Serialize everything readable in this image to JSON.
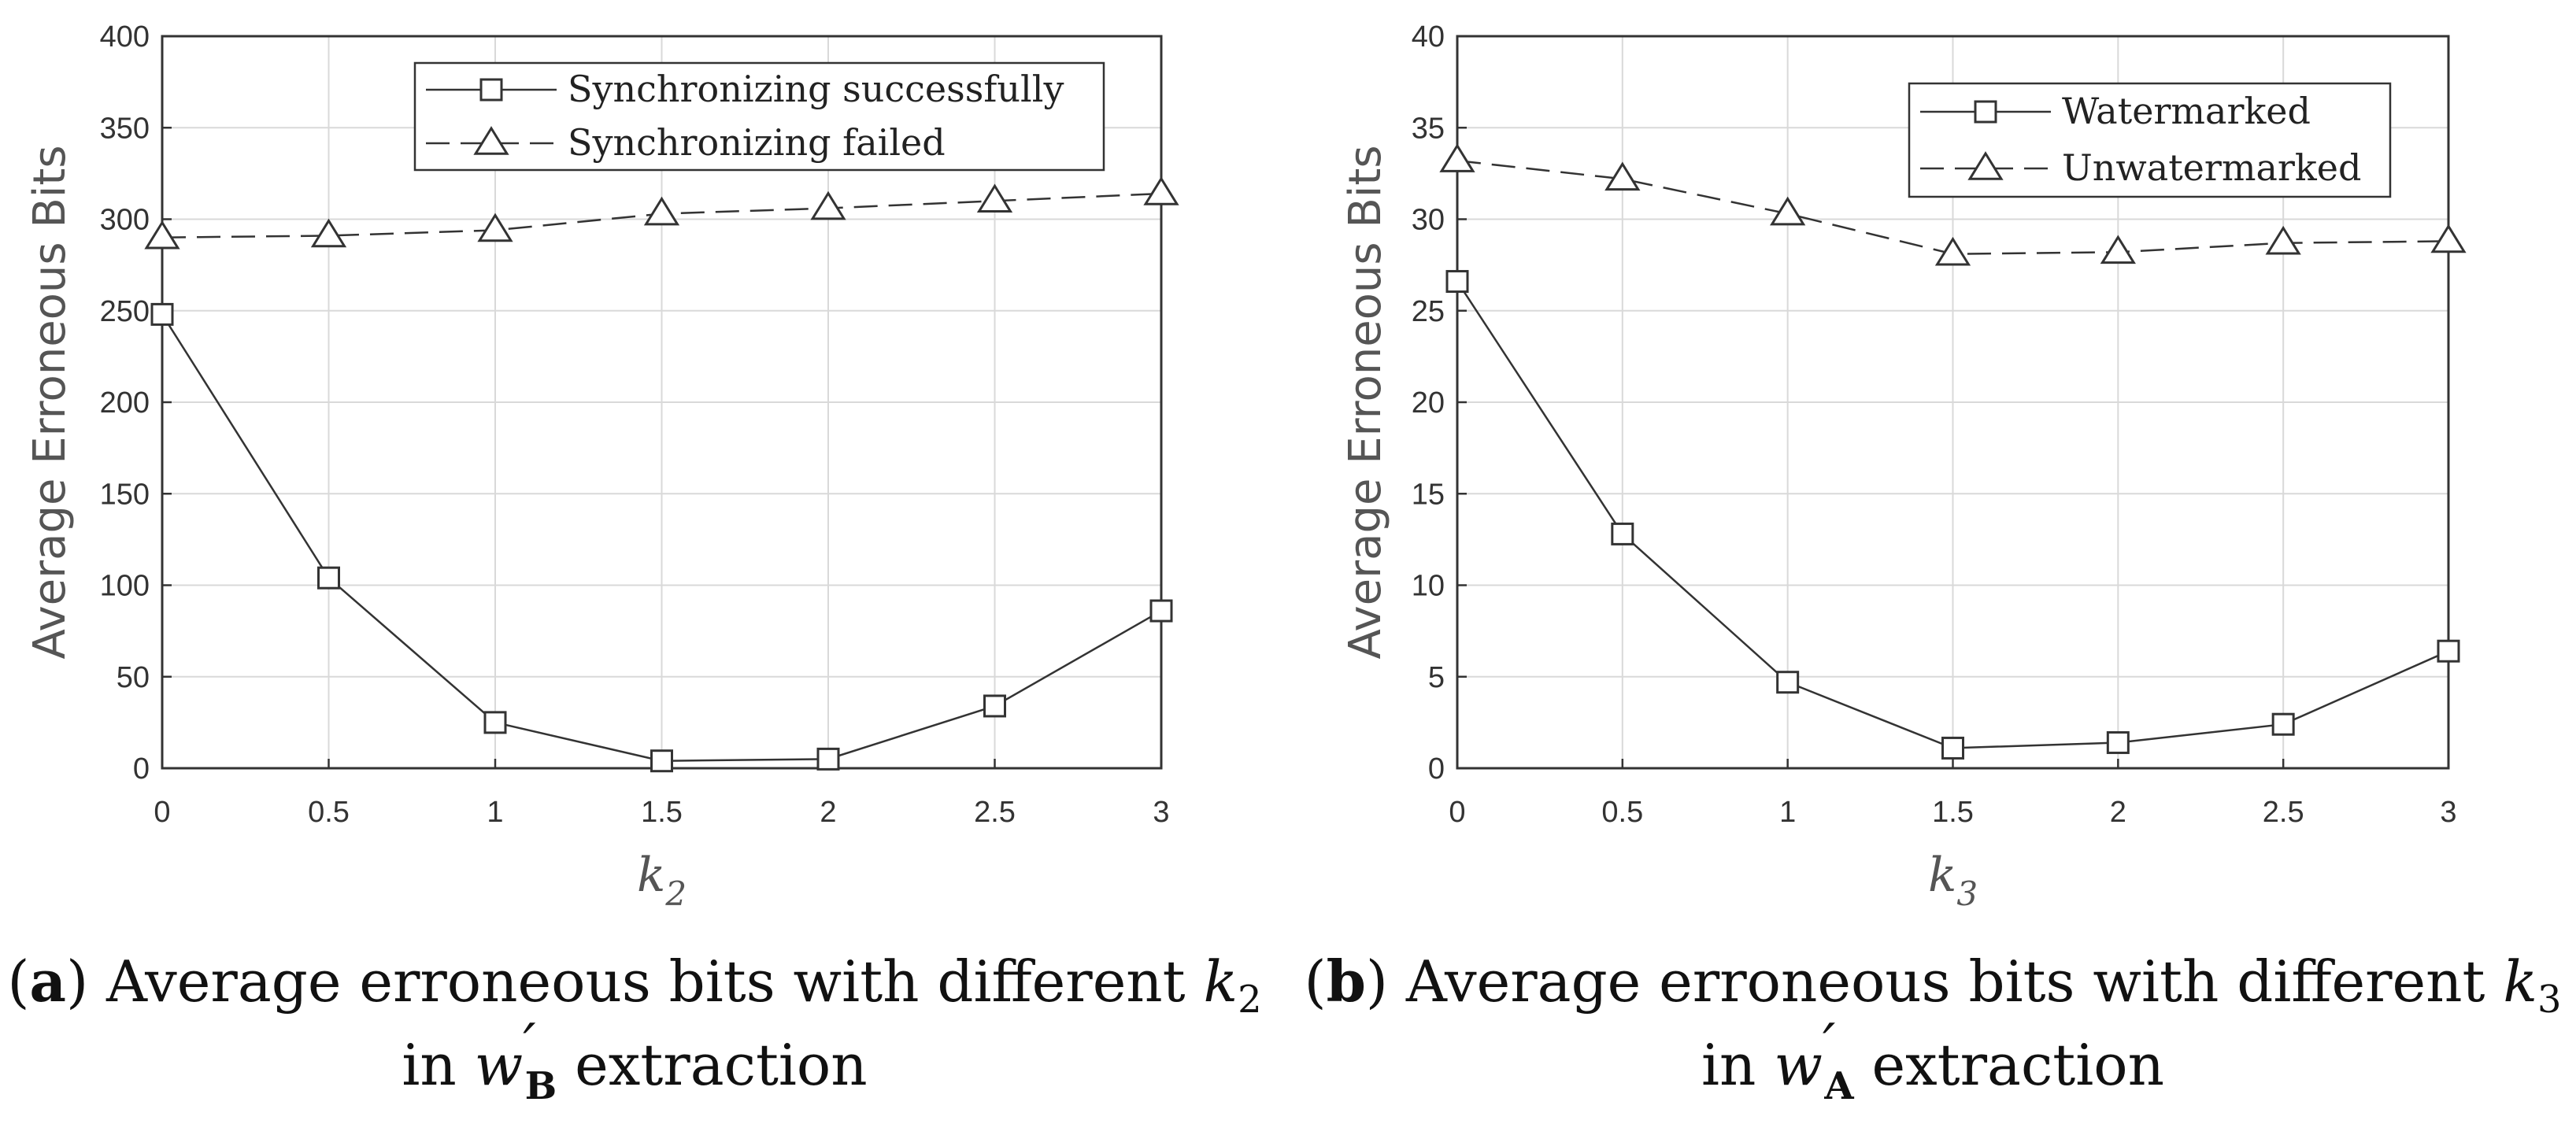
{
  "chart_data": [
    {
      "type": "line",
      "ylabel": "Average Erroneous Bits",
      "xlabel_main": "k",
      "xlabel_sub": "2",
      "xlim": [
        0,
        3
      ],
      "ylim": [
        0,
        400
      ],
      "xticks": [
        "0",
        "0.5",
        "1",
        "1.5",
        "2",
        "2.5",
        "3"
      ],
      "yticks": [
        "0",
        "50",
        "100",
        "150",
        "200",
        "250",
        "300",
        "350",
        "400"
      ],
      "grid": true,
      "legend_position": "top-right",
      "x": [
        0,
        0.5,
        1,
        1.5,
        2,
        2.5,
        3
      ],
      "series": [
        {
          "name": "Synchronizing successfully",
          "marker": "square",
          "line": "solid",
          "values": [
            248,
            104,
            25,
            4,
            5,
            34,
            86
          ]
        },
        {
          "name": "Synchronizing failed",
          "marker": "triangle",
          "line": "dashed",
          "values": [
            290,
            291,
            294,
            303,
            306,
            310,
            314
          ]
        }
      ],
      "caption": {
        "label": "a",
        "text": " Average erroneous bits with different ",
        "var": "k",
        "var_sub": "2",
        "line2_prefix": "in ",
        "w": "w",
        "w_sub": "B",
        "line2_suffix": " extraction"
      }
    },
    {
      "type": "line",
      "ylabel": "Average Erroneous Bits",
      "xlabel_main": "k",
      "xlabel_sub": "3",
      "xlim": [
        0,
        3
      ],
      "ylim": [
        0,
        40
      ],
      "xticks": [
        "0",
        "0.5",
        "1",
        "1.5",
        "2",
        "2.5",
        "3"
      ],
      "yticks": [
        "0",
        "5",
        "10",
        "15",
        "20",
        "25",
        "30",
        "35",
        "40"
      ],
      "grid": true,
      "legend_position": "top-right",
      "x": [
        0,
        0.5,
        1,
        1.5,
        2,
        2.5,
        3
      ],
      "series": [
        {
          "name": "Watermarked",
          "marker": "square",
          "line": "solid",
          "values": [
            26.6,
            12.8,
            4.7,
            1.1,
            1.4,
            2.4,
            6.4
          ]
        },
        {
          "name": "Unwatermarked",
          "marker": "triangle",
          "line": "dashed",
          "values": [
            33.2,
            32.2,
            30.3,
            28.1,
            28.2,
            28.7,
            28.8
          ]
        }
      ],
      "caption": {
        "label": "b",
        "text": " Average erroneous bits with different ",
        "var": "k",
        "var_sub": "3",
        "line2_prefix": "in ",
        "w": "w",
        "w_sub": "A",
        "line2_suffix": " extraction"
      }
    }
  ]
}
